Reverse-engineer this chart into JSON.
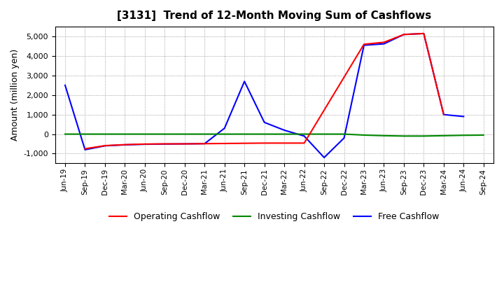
{
  "title": "[3131]  Trend of 12-Month Moving Sum of Cashflows",
  "ylabel": "Amount (million yen)",
  "xlabels": [
    "Jun-19",
    "Sep-19",
    "Dec-19",
    "Mar-20",
    "Jun-20",
    "Sep-20",
    "Dec-20",
    "Mar-21",
    "Jun-21",
    "Sep-21",
    "Dec-21",
    "Mar-22",
    "Jun-22",
    "Sep-22",
    "Dec-22",
    "Mar-23",
    "Jun-23",
    "Sep-23",
    "Dec-23",
    "Mar-24",
    "Jun-24",
    "Sep-24"
  ],
  "operating_cashflow": [
    null,
    -750,
    -590,
    -540,
    -510,
    -500,
    -500,
    -490,
    -480,
    -470,
    -460,
    -460,
    -460,
    null,
    null,
    4600,
    4700,
    5100,
    5150,
    1000,
    null,
    null
  ],
  "investing_cashflow": [
    0,
    0,
    0,
    0,
    0,
    0,
    0,
    0,
    0,
    0,
    0,
    0,
    0,
    0,
    0,
    -50,
    -80,
    -100,
    -100,
    -80,
    -60,
    -50
  ],
  "free_cashflow": [
    2500,
    -800,
    -600,
    -550,
    -520,
    -510,
    -500,
    -490,
    300,
    2700,
    600,
    200,
    -100,
    -1200,
    -200,
    4550,
    4620,
    5100,
    5150,
    1000,
    900,
    null
  ],
  "ylim": [
    -1500,
    5500
  ],
  "yticks": [
    -1000,
    0,
    1000,
    2000,
    3000,
    4000,
    5000
  ],
  "colors": {
    "operating": "#ff0000",
    "investing": "#008800",
    "free": "#0000ff"
  },
  "background": "#ffffff",
  "grid_color": "#888888"
}
